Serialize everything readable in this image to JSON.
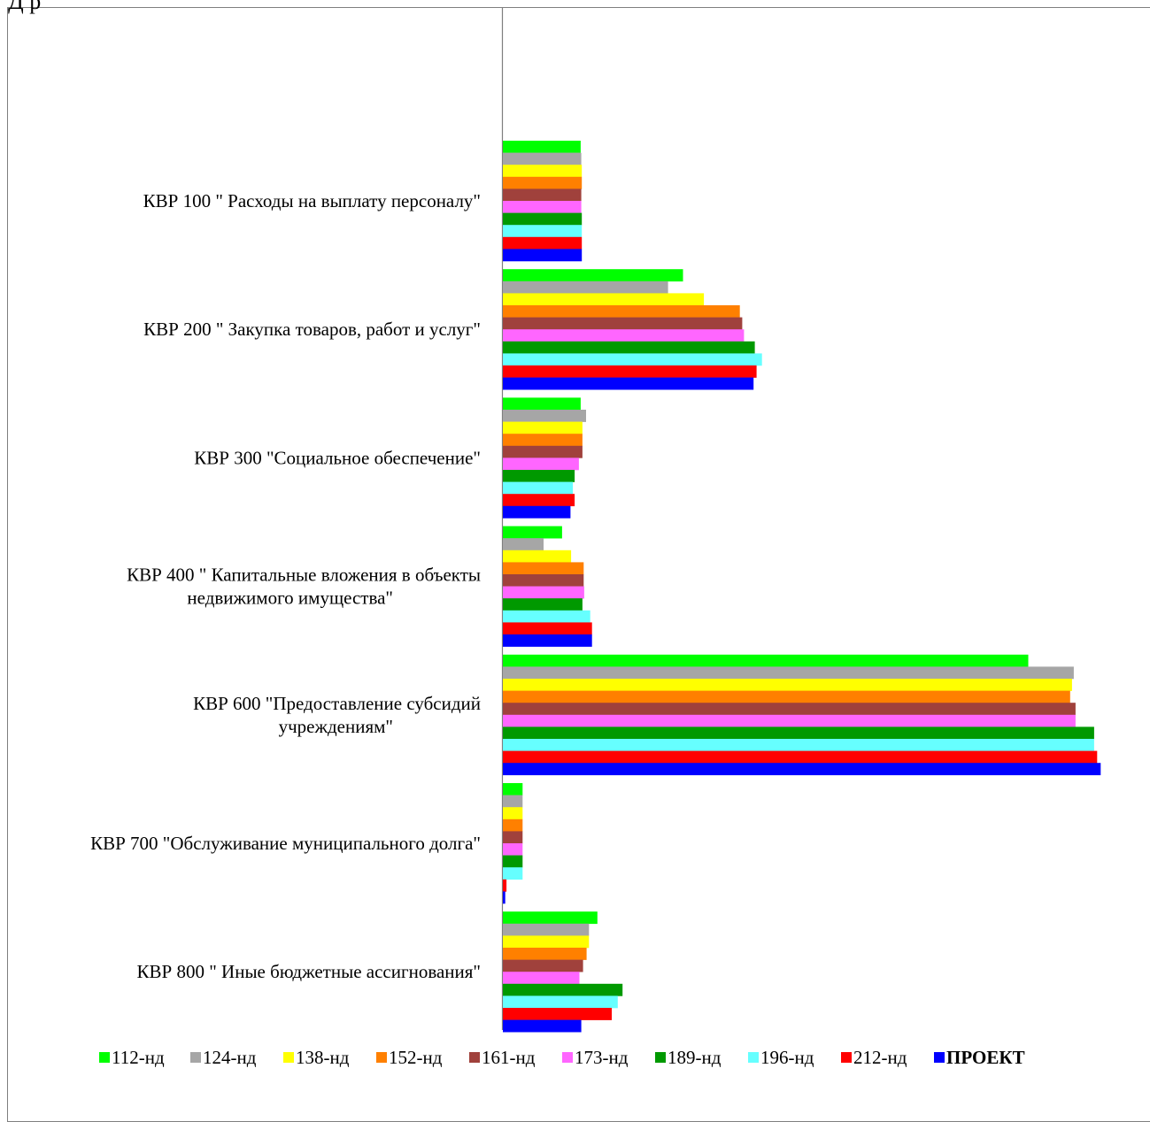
{
  "page": {
    "top_fragment": "Д   р"
  },
  "chart_data": {
    "type": "bar",
    "orientation": "horizontal",
    "title": "",
    "xlabel": "",
    "ylabel": "",
    "xlim": [
      0,
      100
    ],
    "grid": false,
    "legend_position": "bottom",
    "categories": [
      [
        "КВР 100 \" Расходы на выплату персоналу\""
      ],
      [
        "КВР 200 \" Закупка товаров, работ и услуг\""
      ],
      [
        "КВР 300 \"Социальное обеспечение\""
      ],
      [
        "КВР 400 \" Капитальные вложения в объекты",
        "недвижимого имущества\""
      ],
      [
        "КВР 600 \"Предоставление субсидий",
        "учреждениям\""
      ],
      [
        "КВР 700 \"Обслуживание муниципального долга\""
      ],
      [
        "КВР 800 \" Иные бюджетные ассигнования\""
      ]
    ],
    "series": [
      {
        "name": "112-нд",
        "color": "#00ff00",
        "values": [
          13.0,
          30.1,
          13.0,
          9.9,
          87.8,
          3.3,
          15.8
        ]
      },
      {
        "name": "124-нд",
        "color": "#a6a6a6",
        "values": [
          13.1,
          27.6,
          13.9,
          6.8,
          95.4,
          3.3,
          14.4
        ]
      },
      {
        "name": "138-нд",
        "color": "#ffff00",
        "values": [
          13.2,
          33.6,
          13.3,
          11.4,
          95.1,
          3.3,
          14.4
        ]
      },
      {
        "name": "152-нд",
        "color": "#ff8000",
        "values": [
          13.2,
          39.6,
          13.3,
          13.5,
          94.8,
          3.3,
          14.0
        ]
      },
      {
        "name": "161-нд",
        "color": "#a0413c",
        "values": [
          13.1,
          40.0,
          13.3,
          13.5,
          95.7,
          3.3,
          13.4
        ]
      },
      {
        "name": "173-нд",
        "color": "#ff66ff",
        "values": [
          13.1,
          40.3,
          12.7,
          13.6,
          95.7,
          3.3,
          12.8
        ]
      },
      {
        "name": "189-нд",
        "color": "#009900",
        "values": [
          13.2,
          42.1,
          12.0,
          13.3,
          98.8,
          3.3,
          20.0
        ]
      },
      {
        "name": "196-нд",
        "color": "#66ffff",
        "values": [
          13.2,
          43.3,
          11.7,
          14.6,
          98.8,
          3.3,
          19.2
        ]
      },
      {
        "name": "212-нд",
        "color": "#ff0000",
        "values": [
          13.2,
          42.4,
          12.0,
          14.9,
          99.3,
          0.6,
          18.2
        ]
      },
      {
        "name": "ПРОЕКТ",
        "color": "#0000ff",
        "values": [
          13.2,
          41.9,
          11.3,
          14.9,
          99.9,
          0.4,
          13.1
        ],
        "bold": true
      }
    ]
  }
}
